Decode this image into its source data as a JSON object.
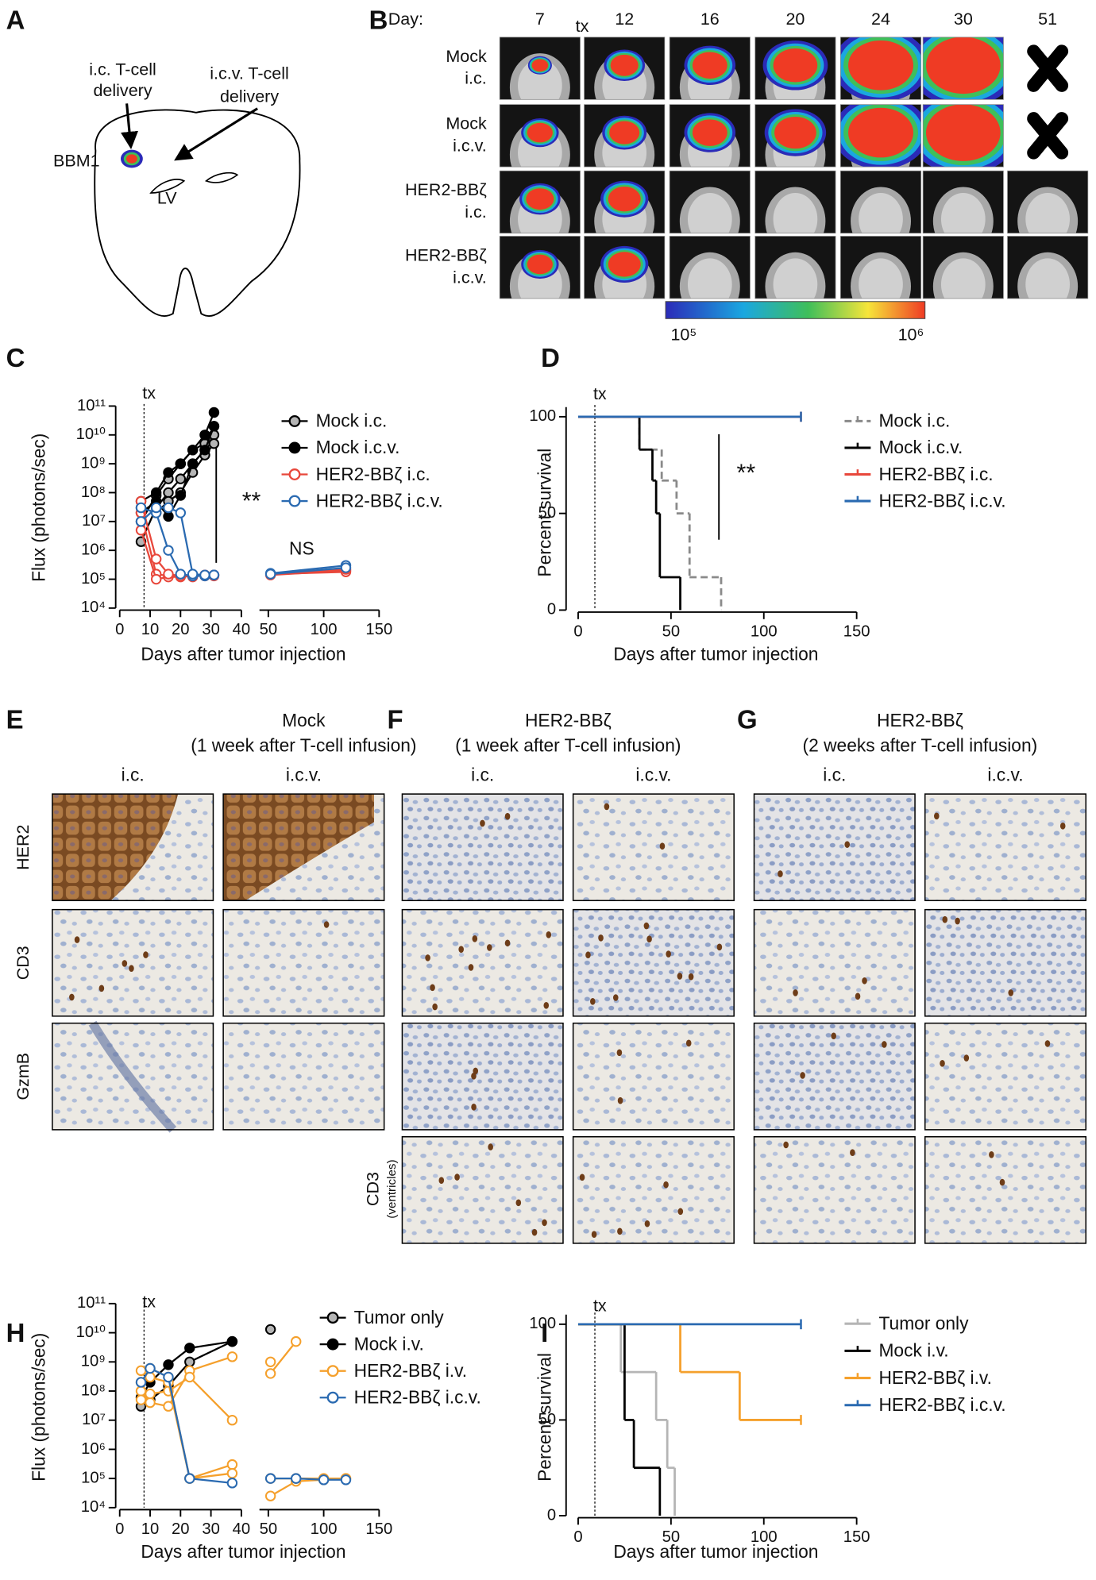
{
  "panel_labels": [
    "A",
    "B",
    "C",
    "D",
    "E",
    "F",
    "G",
    "H",
    "I"
  ],
  "panel_a": {
    "ic_label": [
      "i.c. T-cell",
      "delivery"
    ],
    "icv_label": [
      "i.c.v. T-cell",
      "delivery"
    ],
    "tumor": "BBM1",
    "ventricle": "LV"
  },
  "panel_b": {
    "day_label": "Day:",
    "days": [
      7,
      12,
      16,
      20,
      24,
      30,
      51
    ],
    "tx": "tx",
    "rows": [
      [
        "Mock",
        "i.c."
      ],
      [
        "Mock",
        "i.c.v."
      ],
      [
        "HER2-BBζ",
        "i.c."
      ],
      [
        "HER2-BBζ",
        "i.c.v."
      ]
    ],
    "colorbar": {
      "min": "10⁵",
      "max": "10⁶"
    }
  },
  "charts": [
    {
      "type": "line",
      "log_scale": true,
      "y_label": "Flux (photons/sec)",
      "x_label": "Days after tumor injection",
      "ylim": [
        10000.0,
        100000000000.0
      ],
      "yticks": [
        {
          "value": 10000.0,
          "label": "10⁴"
        },
        {
          "value": 100000.0,
          "label": "10⁵"
        },
        {
          "value": 1000000.0,
          "label": "10⁶"
        },
        {
          "value": 10000000.0,
          "label": "10⁷"
        },
        {
          "value": 100000000.0,
          "label": "10⁸"
        },
        {
          "value": 1000000000.0,
          "label": "10⁹"
        },
        {
          "value": 10000000000.0,
          "label": "10¹⁰"
        },
        {
          "value": 100000000000.0,
          "label": "10¹¹"
        }
      ],
      "x_segments": [
        {
          "xlim": [
            0,
            40
          ],
          "xticks": [
            0,
            10,
            20,
            30,
            40
          ]
        },
        {
          "xlim": [
            42,
            150
          ],
          "xticks": [
            50,
            100,
            150
          ]
        }
      ],
      "tx": {
        "label": "tx",
        "x": 8
      },
      "annotations": [
        "**",
        "NS"
      ],
      "x": [
        7,
        12,
        16,
        20,
        24,
        28,
        31,
        52,
        120
      ],
      "groups": [
        {
          "name": "Mock i.c.",
          "color": "#000000",
          "marker_fill": "#b5b5b5",
          "series": [
            [
              2000000.0,
              30000000.0,
              100000000.0,
              300000000.0,
              1000000000.0,
              3000000000.0,
              10000000000.0,
              null,
              null
            ],
            [
              10000000.0,
              80000000.0,
              300000000.0,
              1000000000.0,
              3000000000.0,
              5000000000.0,
              20000000000.0,
              null,
              null
            ],
            [
              30000000.0,
              20000000.0,
              50000000.0,
              100000000.0,
              500000000.0,
              2000000000.0,
              5000000000.0,
              null,
              null
            ]
          ]
        },
        {
          "name": "Mock i.c.v.",
          "color": "#000000",
          "marker_fill": "#000000",
          "series": [
            [
              50000000.0,
              100000000.0,
              500000000.0,
              1000000000.0,
              3000000000.0,
              10000000000.0,
              60000000000.0,
              null,
              null
            ],
            [
              20000000.0,
              50000000.0,
              15000000.0,
              80000000.0,
              1000000000.0,
              3000000000.0,
              20000000000.0,
              null,
              null
            ]
          ]
        },
        {
          "name": "HER2-BBζ i.c.",
          "color": "#e8473b",
          "marker_fill": "#ffffff",
          "series": [
            [
              20000000.0,
              150000.0,
              130000.0,
              140000.0,
              130000.0,
              140000.0,
              140000.0,
              140000.0,
              200000.0
            ],
            [
              5000000.0,
              100000.0,
              120000.0,
              120000.0,
              130000.0,
              130000.0,
              130000.0,
              150000.0,
              180000.0
            ],
            [
              50000000.0,
              500000.0,
              150000.0,
              130000.0,
              120000.0,
              140000.0,
              140000.0,
              150000.0,
              220000.0
            ]
          ]
        },
        {
          "name": "HER2-BBζ i.c.v.",
          "color": "#2a6ab1",
          "marker_fill": "#ffffff",
          "series": [
            [
              30000000.0,
              20000000.0,
              1000000.0,
              150000.0,
              130000.0,
              130000.0,
              140000.0,
              160000.0,
              300000.0
            ],
            [
              10000000.0,
              30000000.0,
              30000000.0,
              20000000.0,
              150000.0,
              140000.0,
              140000.0,
              150000.0,
              250000.0
            ]
          ]
        }
      ]
    },
    {
      "type": "survival",
      "y_label": "Percent survival",
      "x_label": "Days after tumor injection",
      "ylim": [
        0,
        105
      ],
      "yticks": [
        0,
        50,
        100
      ],
      "x_segments": [
        {
          "xlim": [
            0,
            150
          ],
          "xticks": [
            0,
            50,
            100,
            150
          ]
        }
      ],
      "tx": {
        "label": "tx",
        "x": 9
      },
      "annotations": [
        "**"
      ],
      "groups": [
        {
          "name": "Mock i.c.",
          "color": "#8a8a8a",
          "dashed": true,
          "x": [
            0,
            33,
            45,
            53,
            60,
            77
          ],
          "values": [
            100,
            83,
            67,
            50,
            17,
            0
          ]
        },
        {
          "name": "Mock i.c.v.",
          "color": "#000000",
          "dashed": false,
          "x": [
            0,
            33,
            40,
            42,
            44,
            55
          ],
          "values": [
            100,
            83,
            67,
            50,
            17,
            0
          ]
        },
        {
          "name": "HER2-BBζ i.c.",
          "color": "#e8473b",
          "dashed": false,
          "x": [
            0,
            120
          ],
          "values": [
            100,
            100
          ]
        },
        {
          "name": "HER2-BBζ i.c.v.",
          "color": "#2a6ab1",
          "dashed": false,
          "x": [
            0,
            120
          ],
          "values": [
            100,
            100
          ]
        }
      ]
    },
    {
      "type": "line",
      "log_scale": true,
      "y_label": "Flux (photons/sec)",
      "x_label": "Days after tumor injection",
      "ylim": [
        10000.0,
        100000000000.0
      ],
      "yticks": [
        {
          "value": 10000.0,
          "label": "10⁴"
        },
        {
          "value": 100000.0,
          "label": "10⁵"
        },
        {
          "value": 1000000.0,
          "label": "10⁶"
        },
        {
          "value": 10000000.0,
          "label": "10⁷"
        },
        {
          "value": 100000000.0,
          "label": "10⁸"
        },
        {
          "value": 1000000000.0,
          "label": "10⁹"
        },
        {
          "value": 10000000000.0,
          "label": "10¹⁰"
        },
        {
          "value": 100000000000.0,
          "label": "10¹¹"
        }
      ],
      "x_segments": [
        {
          "xlim": [
            0,
            40
          ],
          "xticks": [
            0,
            10,
            20,
            30,
            40
          ]
        },
        {
          "xlim": [
            42,
            150
          ],
          "xticks": [
            50,
            100,
            150
          ]
        }
      ],
      "tx": {
        "label": "tx",
        "x": 8
      },
      "annotations": [],
      "x": [
        7,
        10,
        16,
        23,
        37,
        52,
        75,
        100,
        120
      ],
      "groups": [
        {
          "name": "Tumor only",
          "color": "#000000",
          "marker_fill": "#b5b5b5",
          "series": [
            [
              30000000.0,
              50000000.0,
              150000000.0,
              1000000000.0,
              5000000000.0,
              13000000000.0,
              null,
              null,
              null
            ]
          ]
        },
        {
          "name": "Mock i.v.",
          "color": "#000000",
          "marker_fill": "#000000",
          "series": [
            [
              60000000.0,
              200000000.0,
              800000000.0,
              3000000000.0,
              5000000000.0,
              null,
              null,
              null,
              null
            ]
          ]
        },
        {
          "name": "HER2-BBζ i.v.",
          "color": "#f5a02c",
          "marker_fill": "#ffffff",
          "series": [
            [
              100000000.0,
              40000000.0,
              30000000.0,
              500000000.0,
              1500000000.0,
              400000000.0,
              5000000000.0,
              null,
              null
            ],
            [
              50000000.0,
              80000000.0,
              100000000.0,
              300000000.0,
              10000000.0,
              1000000000.0,
              null,
              null,
              null
            ],
            [
              500000000.0,
              300000000.0,
              200000000.0,
              100000.0,
              300000.0,
              25000.0,
              80000.0,
              90000.0,
              100000.0
            ],
            [
              200000000.0,
              600000000.0,
              300000000.0,
              100000.0,
              150000.0,
              100000.0,
              100000.0,
              100000.0,
              100000.0
            ]
          ]
        },
        {
          "name": "HER2-BBζ i.c.v.",
          "color": "#2a6ab1",
          "marker_fill": "#ffffff",
          "series": [
            [
              200000000.0,
              600000000.0,
              300000000.0,
              100000.0,
              70000.0,
              100000.0,
              100000.0,
              90000.0,
              90000.0
            ]
          ]
        }
      ]
    },
    {
      "type": "survival",
      "y_label": "Percent survival",
      "x_label": "Days after tumor injection",
      "ylim": [
        0,
        105
      ],
      "yticks": [
        0,
        50,
        100
      ],
      "x_segments": [
        {
          "xlim": [
            0,
            150
          ],
          "xticks": [
            0,
            50,
            100,
            150
          ]
        }
      ],
      "tx": {
        "label": "tx",
        "x": 9
      },
      "annotations": [],
      "groups": [
        {
          "name": "Tumor only",
          "color": "#b5b5b5",
          "dashed": false,
          "x": [
            0,
            23,
            42,
            48,
            52
          ],
          "values": [
            100,
            75,
            50,
            25,
            0
          ]
        },
        {
          "name": "Mock i.v.",
          "color": "#000000",
          "dashed": false,
          "x": [
            0,
            25,
            30,
            44
          ],
          "values": [
            100,
            50,
            25,
            0
          ]
        },
        {
          "name": "HER2-BBζ i.v.",
          "color": "#f5a02c",
          "dashed": false,
          "x": [
            0,
            55,
            87,
            120
          ],
          "values": [
            100,
            75,
            50,
            50
          ]
        },
        {
          "name": "HER2-BBζ i.c.v.",
          "color": "#2a6ab1",
          "dashed": false,
          "x": [
            0,
            120
          ],
          "values": [
            100,
            100
          ]
        }
      ]
    }
  ],
  "histology": [
    {
      "title": "Mock",
      "subtitle": "(1 week after T-cell infusion)",
      "columns": [
        "i.c.",
        "i.c.v."
      ]
    },
    {
      "title": "HER2-BBζ",
      "subtitle": "(1 week after T-cell infusion)",
      "columns": [
        "i.c.",
        "i.c.v."
      ]
    },
    {
      "title": "HER2-BBζ",
      "subtitle": "(2 weeks after T-cell infusion)",
      "columns": [
        "i.c.",
        "i.c.v."
      ]
    }
  ],
  "stain_rows": [
    "HER2",
    "CD3",
    "GzmB"
  ],
  "ventricle_row": [
    "CD3",
    "(ventricles)"
  ]
}
